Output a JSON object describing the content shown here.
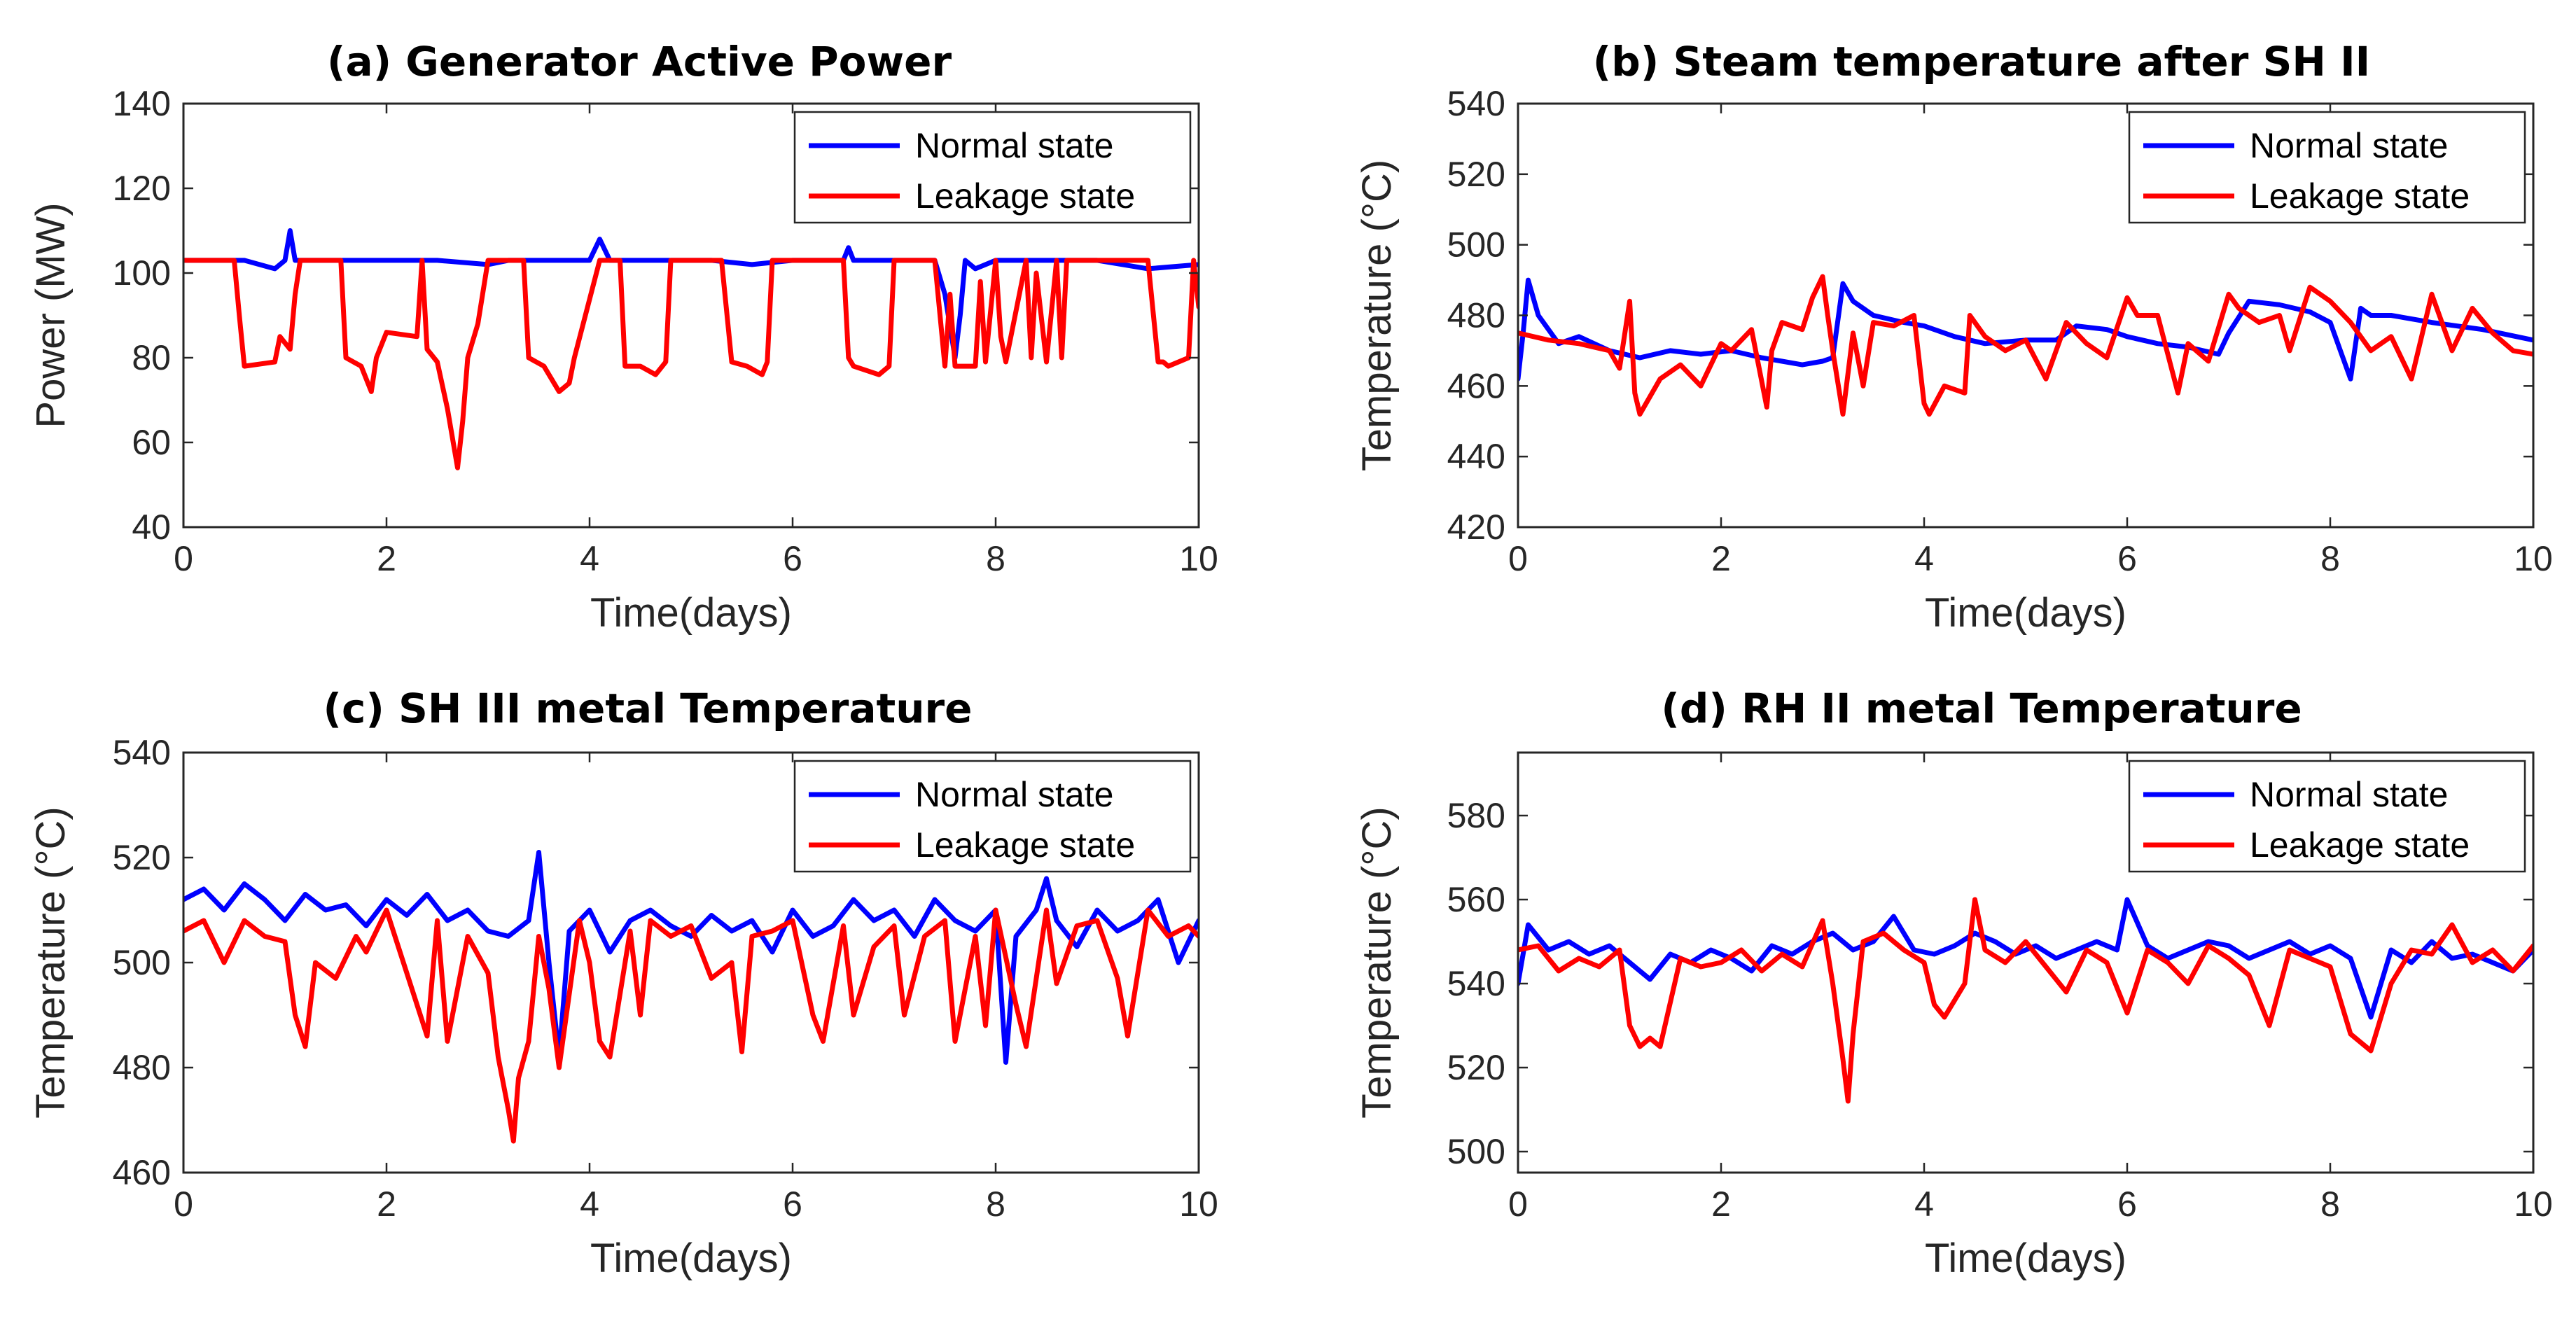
{
  "chart_data": [
    {
      "type": "line",
      "id": "a",
      "title": "(a)  Generator Active Power",
      "xlabel": "Time(days)",
      "ylabel": "Power (MW)",
      "xlim": [
        0,
        10
      ],
      "ylim": [
        40,
        140
      ],
      "xticks": [
        "0",
        "2",
        "4",
        "6",
        "8",
        "10"
      ],
      "yticks": [
        "40",
        "60",
        "80",
        "100",
        "120",
        "140"
      ],
      "legend_position": "top-right",
      "series": [
        {
          "name": "Normal state",
          "color": "#0000ff",
          "x": [
            0,
            0.3,
            0.6,
            0.9,
            1.0,
            1.05,
            1.1,
            1.2,
            1.5,
            2.0,
            2.5,
            3.0,
            3.2,
            3.5,
            4.0,
            4.1,
            4.2,
            4.3,
            4.8,
            5.2,
            5.6,
            6.0,
            6.5,
            6.55,
            6.6,
            7.0,
            7.4,
            7.5,
            7.6,
            7.65,
            7.7,
            7.8,
            8.0,
            8.5,
            9.0,
            9.5,
            10
          ],
          "values": [
            103,
            103,
            103,
            101,
            103,
            110,
            103,
            103,
            103,
            103,
            103,
            102,
            103,
            103,
            103,
            108,
            103,
            103,
            103,
            103,
            102,
            103,
            103,
            106,
            103,
            103,
            103,
            95,
            80,
            90,
            103,
            101,
            103,
            103,
            103,
            101,
            102
          ]
        },
        {
          "name": "Leakage state",
          "color": "#ff0000",
          "x": [
            0,
            0.5,
            0.55,
            0.6,
            0.9,
            0.95,
            1.05,
            1.1,
            1.15,
            1.2,
            1.55,
            1.6,
            1.75,
            1.85,
            1.9,
            2.0,
            2.3,
            2.35,
            2.4,
            2.5,
            2.6,
            2.7,
            2.75,
            2.8,
            2.9,
            3.0,
            3.35,
            3.4,
            3.55,
            3.7,
            3.8,
            3.85,
            4.1,
            4.3,
            4.35,
            4.5,
            4.65,
            4.75,
            4.8,
            5.3,
            5.4,
            5.55,
            5.7,
            5.75,
            5.8,
            6.5,
            6.55,
            6.6,
            6.85,
            6.95,
            7.0,
            7.4,
            7.5,
            7.55,
            7.6,
            7.8,
            7.85,
            7.9,
            8.0,
            8.05,
            8.1,
            8.3,
            8.35,
            8.4,
            8.5,
            8.6,
            8.65,
            8.7,
            9.0,
            9.5,
            9.6,
            9.65,
            9.7,
            9.9,
            9.95,
            10
          ],
          "values": [
            103,
            103,
            90,
            78,
            79,
            85,
            82,
            95,
            103,
            103,
            103,
            80,
            78,
            72,
            80,
            86,
            85,
            103,
            82,
            79,
            68,
            54,
            65,
            80,
            88,
            103,
            103,
            80,
            78,
            72,
            74,
            80,
            103,
            103,
            78,
            78,
            76,
            79,
            103,
            103,
            79,
            78,
            76,
            79,
            103,
            103,
            80,
            78,
            76,
            78,
            103,
            103,
            78,
            95,
            78,
            78,
            98,
            79,
            103,
            85,
            79,
            103,
            80,
            100,
            79,
            103,
            80,
            103,
            103,
            103,
            79,
            79,
            78,
            80,
            103,
            92
          ]
        }
      ]
    },
    {
      "type": "line",
      "id": "b",
      "title": "(b)  Steam temperature after SH II",
      "xlabel": "Time(days)",
      "ylabel": "Temperature (°C)",
      "xlim": [
        0,
        10
      ],
      "ylim": [
        420,
        540
      ],
      "xticks": [
        "0",
        "2",
        "4",
        "6",
        "8",
        "10"
      ],
      "yticks": [
        "420",
        "440",
        "460",
        "480",
        "500",
        "520",
        "540"
      ],
      "legend_position": "top-right",
      "series": [
        {
          "name": "Normal state",
          "color": "#0000ff",
          "x": [
            0,
            0.05,
            0.1,
            0.2,
            0.4,
            0.6,
            0.9,
            1.2,
            1.5,
            1.8,
            2.1,
            2.4,
            2.6,
            2.8,
            3.0,
            3.1,
            3.2,
            3.3,
            3.5,
            3.8,
            4.0,
            4.3,
            4.6,
            5.0,
            5.3,
            5.5,
            5.8,
            6.0,
            6.3,
            6.6,
            6.9,
            7.0,
            7.2,
            7.5,
            7.8,
            8.0,
            8.2,
            8.3,
            8.4,
            8.6,
            9.0,
            9.5,
            10
          ],
          "values": [
            462,
            475,
            490,
            480,
            472,
            474,
            470,
            468,
            470,
            469,
            470,
            468,
            467,
            466,
            467,
            468,
            489,
            484,
            480,
            478,
            477,
            474,
            472,
            473,
            473,
            477,
            476,
            474,
            472,
            471,
            469,
            475,
            484,
            483,
            481,
            478,
            462,
            482,
            480,
            480,
            478,
            476,
            473
          ]
        },
        {
          "name": "Leakage state",
          "color": "#ff0000",
          "x": [
            0,
            0.3,
            0.6,
            0.9,
            1.0,
            1.1,
            1.15,
            1.2,
            1.4,
            1.6,
            1.8,
            2.0,
            2.1,
            2.3,
            2.45,
            2.5,
            2.6,
            2.8,
            2.9,
            3.0,
            3.05,
            3.1,
            3.2,
            3.3,
            3.4,
            3.5,
            3.7,
            3.9,
            4.0,
            4.05,
            4.2,
            4.4,
            4.45,
            4.6,
            4.8,
            5.0,
            5.2,
            5.4,
            5.6,
            5.8,
            6.0,
            6.1,
            6.3,
            6.5,
            6.6,
            6.8,
            7.0,
            7.1,
            7.3,
            7.5,
            7.6,
            7.8,
            8.0,
            8.2,
            8.4,
            8.6,
            8.8,
            9.0,
            9.2,
            9.4,
            9.6,
            9.8,
            10
          ],
          "values": [
            475,
            473,
            472,
            470,
            465,
            484,
            458,
            452,
            462,
            466,
            460,
            472,
            470,
            476,
            454,
            470,
            478,
            476,
            485,
            491,
            480,
            470,
            452,
            475,
            460,
            478,
            477,
            480,
            455,
            452,
            460,
            458,
            480,
            474,
            470,
            473,
            462,
            478,
            472,
            468,
            485,
            480,
            480,
            458,
            472,
            467,
            486,
            482,
            478,
            480,
            470,
            488,
            484,
            478,
            470,
            474,
            462,
            486,
            470,
            482,
            475,
            470,
            469
          ]
        }
      ]
    },
    {
      "type": "line",
      "id": "c",
      "title": "(c)  SH III metal Temperature",
      "xlabel": "Time(days)",
      "ylabel": "Temperature (°C)",
      "xlim": [
        0,
        10
      ],
      "ylim": [
        460,
        540
      ],
      "xticks": [
        "0",
        "2",
        "4",
        "6",
        "8",
        "10"
      ],
      "yticks": [
        "460",
        "480",
        "500",
        "520",
        "540"
      ],
      "legend_position": "top-right",
      "series": [
        {
          "name": "Normal state",
          "color": "#0000ff",
          "x": [
            0,
            0.2,
            0.4,
            0.6,
            0.8,
            1.0,
            1.2,
            1.4,
            1.6,
            1.8,
            2.0,
            2.2,
            2.4,
            2.6,
            2.8,
            3.0,
            3.2,
            3.4,
            3.5,
            3.6,
            3.7,
            3.8,
            4.0,
            4.2,
            4.4,
            4.6,
            4.8,
            5.0,
            5.2,
            5.4,
            5.6,
            5.8,
            6.0,
            6.2,
            6.4,
            6.6,
            6.8,
            7.0,
            7.2,
            7.4,
            7.6,
            7.8,
            8.0,
            8.1,
            8.2,
            8.4,
            8.5,
            8.6,
            8.8,
            9.0,
            9.2,
            9.4,
            9.6,
            9.8,
            10
          ],
          "values": [
            512,
            514,
            510,
            515,
            512,
            508,
            513,
            510,
            511,
            507,
            512,
            509,
            513,
            508,
            510,
            506,
            505,
            508,
            521,
            500,
            482,
            506,
            510,
            502,
            508,
            510,
            507,
            505,
            509,
            506,
            508,
            502,
            510,
            505,
            507,
            512,
            508,
            510,
            505,
            512,
            508,
            506,
            510,
            481,
            505,
            510,
            516,
            508,
            503,
            510,
            506,
            508,
            512,
            500,
            508
          ]
        },
        {
          "name": "Leakage state",
          "color": "#ff0000",
          "x": [
            0,
            0.2,
            0.4,
            0.6,
            0.8,
            1.0,
            1.1,
            1.2,
            1.3,
            1.5,
            1.7,
            1.8,
            2.0,
            2.2,
            2.4,
            2.5,
            2.6,
            2.8,
            3.0,
            3.1,
            3.2,
            3.25,
            3.3,
            3.4,
            3.5,
            3.6,
            3.7,
            3.9,
            4.0,
            4.1,
            4.2,
            4.4,
            4.5,
            4.6,
            4.8,
            5.0,
            5.2,
            5.4,
            5.5,
            5.6,
            5.8,
            6.0,
            6.2,
            6.3,
            6.5,
            6.6,
            6.8,
            7.0,
            7.1,
            7.3,
            7.5,
            7.6,
            7.8,
            7.9,
            8.0,
            8.2,
            8.3,
            8.5,
            8.6,
            8.8,
            9.0,
            9.2,
            9.3,
            9.5,
            9.7,
            9.9,
            10
          ],
          "values": [
            506,
            508,
            500,
            508,
            505,
            504,
            490,
            484,
            500,
            497,
            505,
            502,
            510,
            498,
            486,
            508,
            485,
            505,
            498,
            482,
            472,
            466,
            478,
            485,
            505,
            495,
            480,
            508,
            500,
            485,
            482,
            506,
            490,
            508,
            505,
            507,
            497,
            500,
            483,
            505,
            506,
            508,
            490,
            485,
            507,
            490,
            503,
            507,
            490,
            505,
            508,
            485,
            505,
            488,
            510,
            492,
            484,
            510,
            496,
            507,
            508,
            497,
            486,
            510,
            505,
            507,
            505
          ]
        }
      ]
    },
    {
      "type": "line",
      "id": "d",
      "title": "(d)     RH II metal Temperature",
      "xlabel": "Time(days)",
      "ylabel": "Temperature (°C)",
      "xlim": [
        0,
        10
      ],
      "ylim": [
        495,
        595
      ],
      "xticks": [
        "0",
        "2",
        "4",
        "6",
        "8",
        "10"
      ],
      "yticks": [
        "500",
        "520",
        "540",
        "560",
        "580"
      ],
      "legend_position": "top-right",
      "series": [
        {
          "name": "Normal state",
          "color": "#0000ff",
          "x": [
            0,
            0.1,
            0.3,
            0.5,
            0.7,
            0.9,
            1.1,
            1.3,
            1.5,
            1.7,
            1.9,
            2.1,
            2.3,
            2.5,
            2.7,
            2.9,
            3.1,
            3.3,
            3.5,
            3.7,
            3.9,
            4.1,
            4.3,
            4.5,
            4.7,
            4.9,
            5.1,
            5.3,
            5.5,
            5.7,
            5.9,
            6.0,
            6.2,
            6.4,
            6.6,
            6.8,
            7.0,
            7.2,
            7.4,
            7.6,
            7.8,
            8.0,
            8.2,
            8.4,
            8.6,
            8.8,
            9.0,
            9.2,
            9.4,
            9.6,
            9.8,
            10
          ],
          "values": [
            540,
            554,
            548,
            550,
            547,
            549,
            545,
            541,
            547,
            545,
            548,
            546,
            543,
            549,
            547,
            550,
            552,
            548,
            550,
            556,
            548,
            547,
            549,
            552,
            550,
            547,
            549,
            546,
            548,
            550,
            548,
            560,
            549,
            546,
            548,
            550,
            549,
            546,
            548,
            550,
            547,
            549,
            546,
            532,
            548,
            545,
            550,
            546,
            547,
            545,
            543,
            548
          ]
        },
        {
          "name": "Leakage state",
          "color": "#ff0000",
          "x": [
            0,
            0.2,
            0.4,
            0.6,
            0.8,
            1.0,
            1.1,
            1.2,
            1.3,
            1.4,
            1.6,
            1.8,
            2.0,
            2.2,
            2.4,
            2.6,
            2.8,
            3.0,
            3.1,
            3.2,
            3.25,
            3.3,
            3.4,
            3.6,
            3.8,
            4.0,
            4.1,
            4.2,
            4.4,
            4.5,
            4.6,
            4.8,
            5.0,
            5.2,
            5.4,
            5.6,
            5.8,
            6.0,
            6.2,
            6.4,
            6.6,
            6.8,
            7.0,
            7.2,
            7.4,
            7.6,
            7.8,
            8.0,
            8.2,
            8.4,
            8.6,
            8.8,
            9.0,
            9.2,
            9.4,
            9.6,
            9.8,
            10
          ],
          "values": [
            548,
            549,
            543,
            546,
            544,
            548,
            530,
            525,
            527,
            525,
            546,
            544,
            545,
            548,
            543,
            547,
            544,
            555,
            540,
            522,
            512,
            528,
            550,
            552,
            548,
            545,
            535,
            532,
            540,
            560,
            548,
            545,
            550,
            544,
            538,
            548,
            545,
            533,
            548,
            545,
            540,
            549,
            546,
            542,
            530,
            548,
            546,
            544,
            528,
            524,
            540,
            548,
            547,
            554,
            545,
            548,
            543,
            549
          ]
        }
      ]
    }
  ]
}
